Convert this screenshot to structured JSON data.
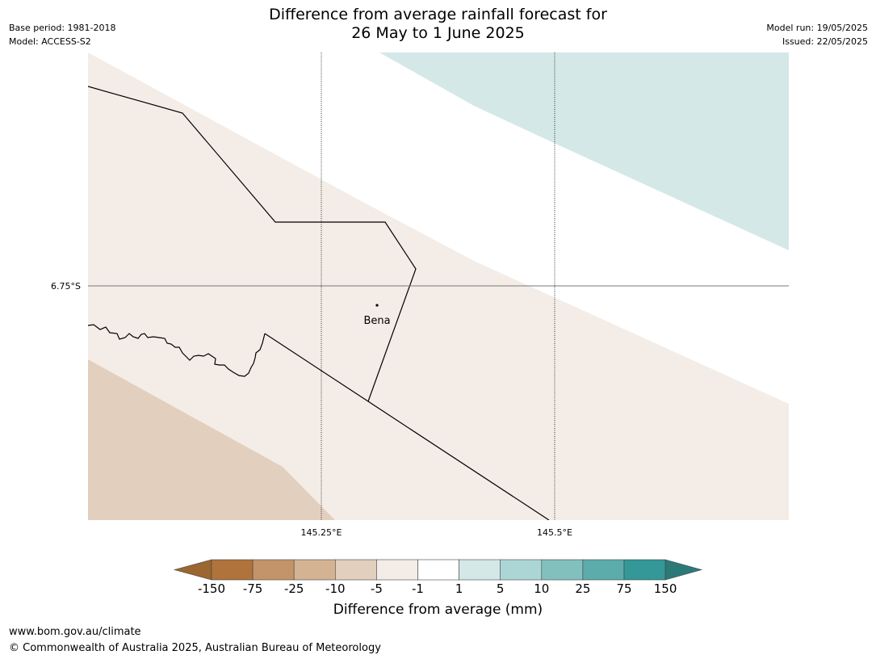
{
  "title_line1": "Difference from average rainfall forecast for",
  "title_line2": "26 May to 1 June 2025",
  "meta": {
    "base_period": "Base period: 1981-2018",
    "model": "Model: ACCESS-S2",
    "model_run": "Model run: 19/05/2025",
    "issued": "Issued: 22/05/2025"
  },
  "map": {
    "lat_label": "6.75°S",
    "lon_labels": [
      "145.25°E",
      "145.5°E"
    ],
    "place": "Bena"
  },
  "colorbar": {
    "ticks": [
      "-150",
      "-75",
      "-25",
      "-10",
      "-5",
      "-1",
      "1",
      "5",
      "10",
      "25",
      "75",
      "150"
    ],
    "colors": [
      "#9b6630",
      "#b0733c",
      "#c39469",
      "#d4b393",
      "#e2cfbd",
      "#f4ede7",
      "#ffffff",
      "#d4e8e7",
      "#acd6d5",
      "#82c0be",
      "#5bacab",
      "#339897",
      "#2a7a78"
    ],
    "label": "Difference from average (mm)"
  },
  "footer": {
    "url": "www.bom.gov.au/climate",
    "copyright": "© Commonwealth of Australia 2025, Australian Bureau of Meteorology"
  }
}
